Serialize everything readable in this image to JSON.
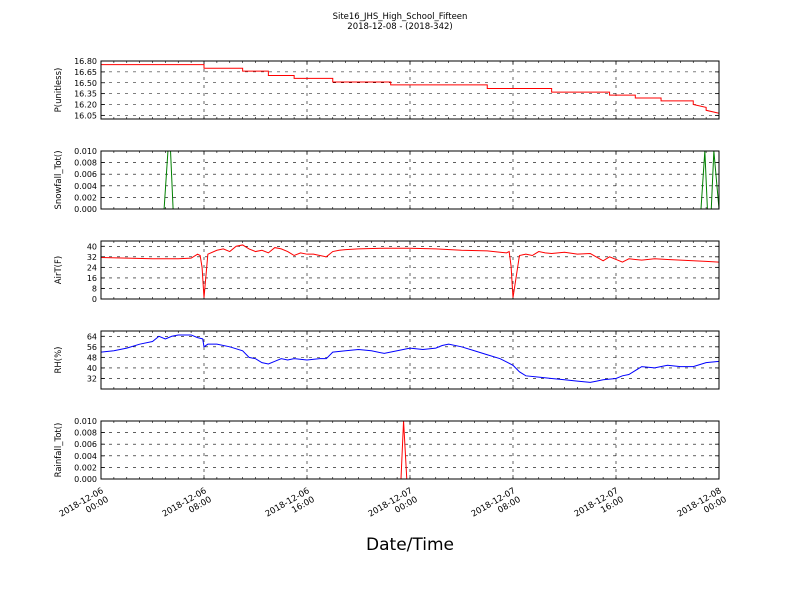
{
  "figure": {
    "title_line1": "Site16_JHS_High_School_Fifteen",
    "title_line2": "2018-12-08 - (2018-342)",
    "xlabel": "Date/Time"
  },
  "chart_data": [
    {
      "type": "line",
      "ylabel": "P(unitless)",
      "ylim": [
        16.0,
        16.8
      ],
      "yticks": [
        "16.80",
        "16.65",
        "16.50",
        "16.35",
        "16.20",
        "16.05"
      ],
      "ytick_values": [
        16.8,
        16.65,
        16.5,
        16.35,
        16.2,
        16.05
      ],
      "grid": true,
      "color": "#ff0000",
      "x": [
        0.0,
        8.0,
        8.0,
        11.0,
        11.0,
        13.0,
        13.0,
        15.0,
        15.0,
        18.0,
        18.0,
        22.5,
        22.5,
        30.0,
        30.0,
        35.0,
        35.0,
        39.5,
        39.5,
        41.5,
        41.5,
        43.5,
        43.5,
        46.0,
        46.0,
        47.0,
        47.0,
        48.0
      ],
      "values": [
        16.75,
        16.75,
        16.7,
        16.7,
        16.66,
        16.66,
        16.6,
        16.6,
        16.56,
        16.56,
        16.51,
        16.51,
        16.47,
        16.47,
        16.42,
        16.42,
        16.37,
        16.37,
        16.33,
        16.33,
        16.29,
        16.29,
        16.25,
        16.25,
        16.2,
        16.16,
        16.12,
        16.08
      ]
    },
    {
      "type": "line",
      "ylabel": "Snowfall_Tot()",
      "ylim": [
        0.0,
        0.01
      ],
      "yticks": [
        "0.010",
        "0.008",
        "0.006",
        "0.004",
        "0.002",
        "0.000"
      ],
      "ytick_values": [
        0.01,
        0.008,
        0.006,
        0.004,
        0.002,
        0.0
      ],
      "grid": true,
      "color": "#008000",
      "x": [
        0.0,
        4.9,
        5.2,
        5.4,
        5.6,
        46.6,
        46.9,
        47.1,
        47.4,
        47.6,
        48.0
      ],
      "values": [
        0.0,
        0.0,
        0.01,
        0.01,
        0.0,
        0.0,
        0.01,
        0.0,
        0.0,
        0.01,
        0.0
      ]
    },
    {
      "type": "line",
      "ylabel": "AirT(F)",
      "ylim": [
        0,
        44
      ],
      "yticks": [
        "40",
        "32",
        "24",
        "16",
        "8",
        "0"
      ],
      "ytick_values": [
        40,
        32,
        24,
        16,
        8,
        0
      ],
      "grid": true,
      "color": "#ff0000",
      "x": [
        0.0,
        2.0,
        4.0,
        6.0,
        7.0,
        7.5,
        7.7,
        7.85,
        8.0,
        8.3,
        9.0,
        9.5,
        10.0,
        10.5,
        11.0,
        11.5,
        12.0,
        12.5,
        13.0,
        13.5,
        14.0,
        14.5,
        15.0,
        15.5,
        16.0,
        16.5,
        17.0,
        17.5,
        18.0,
        18.5,
        19.0,
        20.0,
        22.0,
        24.0,
        26.0,
        28.0,
        30.0,
        31.0,
        31.5,
        31.7,
        31.85,
        32.0,
        32.5,
        33.0,
        33.5,
        34.0,
        34.5,
        35.0,
        36.0,
        37.0,
        38.0,
        39.0,
        39.5,
        40.0,
        40.5,
        41.0,
        41.5,
        42.0,
        43.0,
        44.0,
        45.0,
        46.0,
        47.0,
        48.0
      ],
      "values": [
        31.5,
        31.0,
        30.5,
        30.5,
        31.0,
        34.0,
        33.0,
        24.0,
        1.0,
        34.0,
        37.0,
        38.0,
        36.0,
        40.0,
        41.0,
        38.0,
        36.0,
        37.0,
        35.0,
        39.0,
        38.0,
        36.0,
        33.0,
        35.0,
        34.0,
        34.0,
        33.0,
        32.0,
        36.0,
        37.0,
        37.5,
        38.0,
        38.5,
        38.5,
        38.0,
        37.0,
        36.5,
        35.5,
        35.0,
        36.0,
        25.0,
        1.0,
        33.0,
        34.0,
        33.0,
        36.0,
        35.0,
        34.5,
        35.5,
        34.0,
        34.5,
        29.0,
        32.0,
        30.0,
        28.0,
        30.5,
        30.0,
        29.5,
        30.5,
        30.0,
        29.5,
        29.0,
        28.5,
        28.0
      ]
    },
    {
      "type": "line",
      "ylabel": "RH(%)",
      "ylim": [
        24,
        68
      ],
      "yticks": [
        "64",
        "56",
        "48",
        "40",
        "32"
      ],
      "ytick_values": [
        64,
        56,
        48,
        40,
        32
      ],
      "grid": true,
      "color": "#0000ff",
      "x": [
        0.0,
        1.0,
        2.0,
        3.0,
        4.0,
        4.5,
        5.0,
        5.5,
        6.0,
        7.0,
        7.5,
        7.9,
        8.0,
        8.3,
        9.0,
        10.0,
        11.0,
        11.5,
        12.0,
        12.5,
        13.0,
        13.5,
        14.0,
        14.5,
        15.0,
        16.0,
        17.0,
        17.5,
        18.0,
        19.0,
        20.0,
        21.0,
        22.0,
        23.0,
        24.0,
        25.0,
        26.0,
        26.5,
        27.0,
        28.0,
        29.0,
        30.0,
        31.0,
        32.0,
        32.5,
        33.0,
        34.0,
        35.0,
        36.0,
        37.0,
        38.0,
        38.5,
        39.0,
        40.0,
        40.5,
        41.0,
        42.0,
        43.0,
        44.0,
        45.0,
        46.0,
        47.0,
        48.0
      ],
      "values": [
        52.0,
        53.0,
        55.0,
        58.0,
        60.0,
        64.0,
        62.0,
        64.0,
        65.0,
        65.0,
        63.0,
        62.0,
        56.0,
        58.0,
        58.0,
        56.0,
        53.0,
        48.0,
        47.0,
        44.0,
        43.0,
        45.0,
        47.0,
        46.0,
        47.0,
        46.0,
        47.0,
        47.0,
        52.0,
        53.0,
        54.0,
        53.0,
        51.0,
        53.0,
        55.0,
        54.0,
        55.0,
        57.0,
        58.0,
        56.0,
        53.0,
        50.0,
        47.0,
        42.0,
        37.0,
        34.0,
        33.0,
        32.0,
        31.0,
        30.0,
        29.0,
        30.0,
        31.0,
        32.0,
        34.0,
        35.0,
        41.0,
        40.0,
        42.0,
        41.0,
        41.0,
        44.0,
        45.0
      ]
    },
    {
      "type": "line",
      "ylabel": "Rainfall_Tot()",
      "ylim": [
        0.0,
        0.01
      ],
      "yticks": [
        "0.010",
        "0.008",
        "0.006",
        "0.004",
        "0.002",
        "0.000"
      ],
      "ytick_values": [
        0.01,
        0.008,
        0.006,
        0.004,
        0.002,
        0.0
      ],
      "grid": true,
      "color": "#ff0000",
      "x": [
        0.0,
        23.3,
        23.5,
        23.75,
        48.0
      ],
      "values": [
        0.0,
        0.0,
        0.01,
        0.0,
        0.0
      ],
      "xticks": [
        "2018-12-06\n00:00",
        "2018-12-06\n08:00",
        "2018-12-06\n16:00",
        "2018-12-07\n00:00",
        "2018-12-07\n08:00",
        "2018-12-07\n16:00",
        "2018-12-08\n00:00"
      ]
    }
  ]
}
